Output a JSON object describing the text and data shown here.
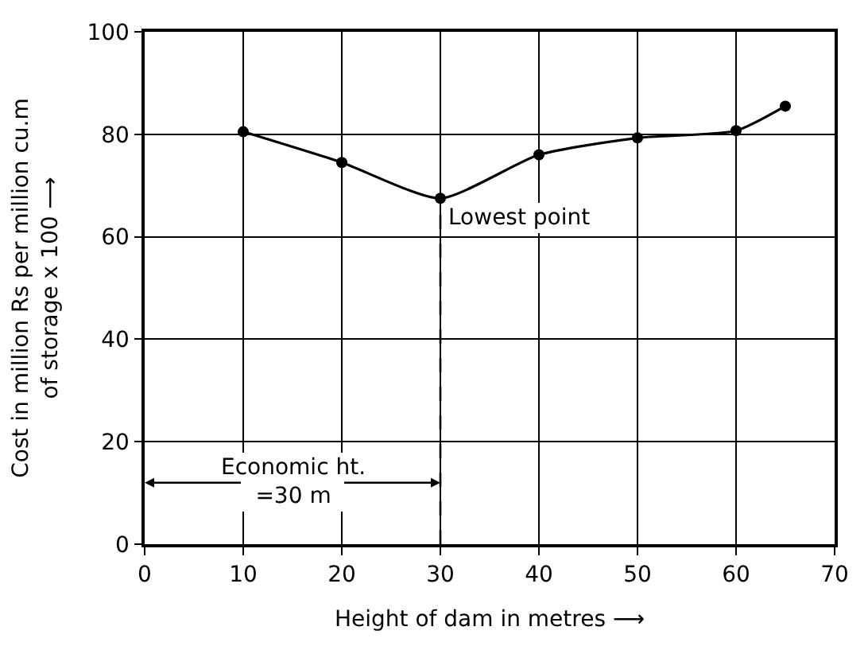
{
  "chart_data": {
    "type": "line",
    "xlabel": "Height of dam in metres ⟶",
    "ylabel": "Cost in million Rs per million cu.m\nof storage x 100 ⟶",
    "x": [
      10,
      20,
      30,
      40,
      50,
      60,
      65
    ],
    "series": [
      {
        "color": "#000000",
        "values": [
          80.5,
          74.5,
          67.5,
          76,
          79.3,
          80.7,
          85.5
        ]
      }
    ],
    "xlim": [
      0,
      70
    ],
    "xticks": [
      0,
      10,
      20,
      30,
      40,
      50,
      60,
      70
    ],
    "ylim": [
      0,
      100
    ],
    "yticks": [
      0,
      20,
      40,
      60,
      80,
      100
    ],
    "grid": true,
    "marker": "circle",
    "line_style": "solid",
    "ref_lines": [
      {
        "axis": "x",
        "value": 30,
        "line_style": "dashed",
        "color": "#000000"
      }
    ],
    "annotations": [
      {
        "text": "Lowest point",
        "x": 30,
        "y": 67.5
      },
      {
        "text": "Economic ht.\n=30 m",
        "x": 30,
        "y": 12
      }
    ]
  }
}
